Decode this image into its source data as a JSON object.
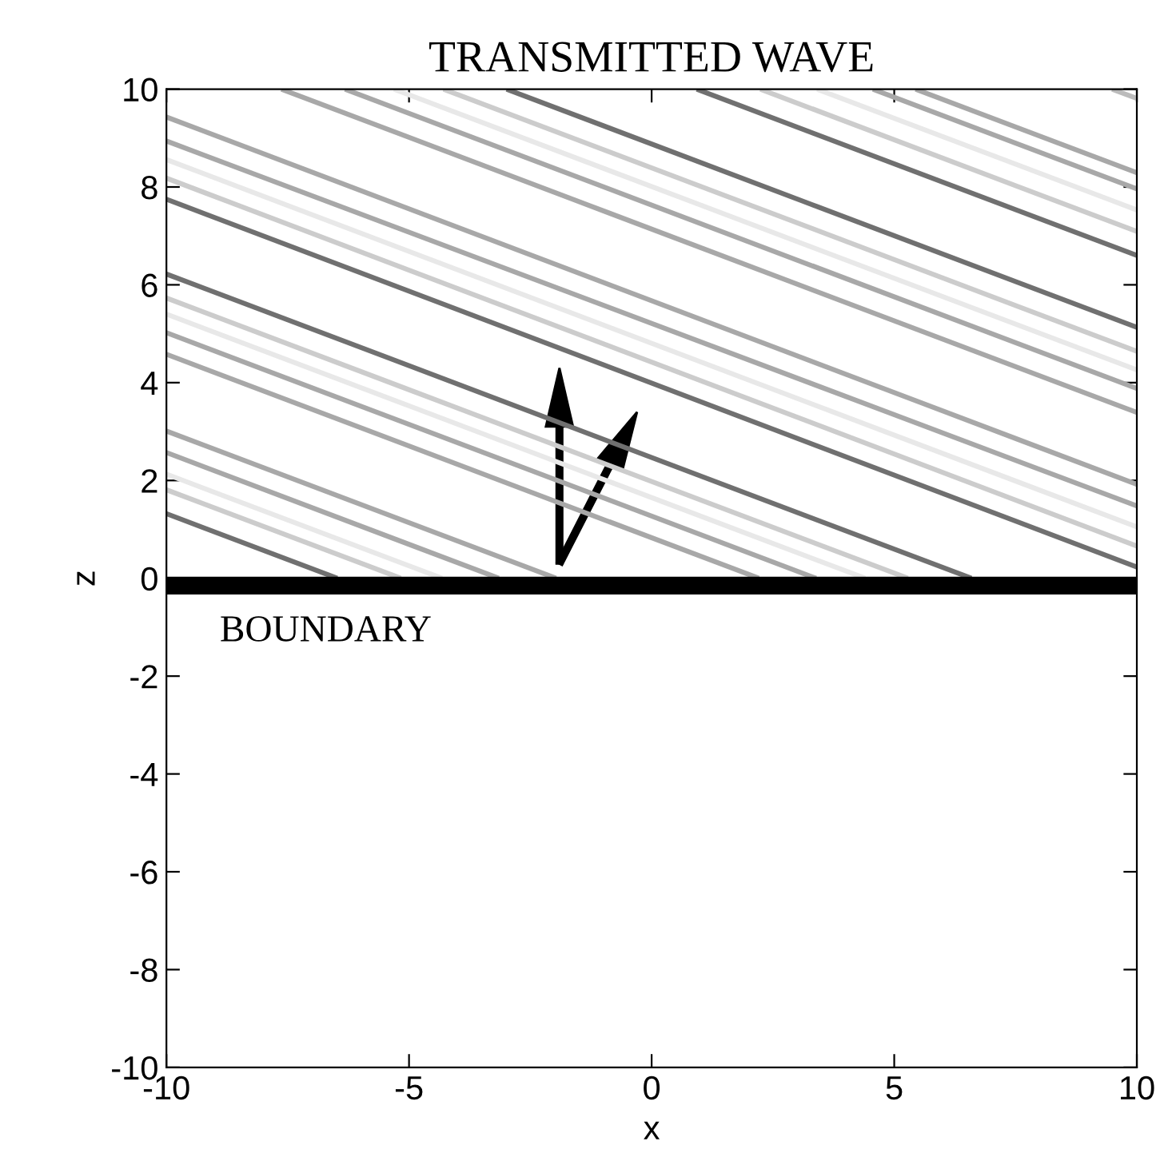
{
  "chart_data": {
    "type": "line",
    "title": "TRANSMITTED WAVE",
    "xlabel": "x",
    "ylabel": "z",
    "xlim": [
      -10,
      10
    ],
    "ylim": [
      -10,
      10
    ],
    "xticks": [
      -10,
      -5,
      0,
      5,
      10
    ],
    "yticks": [
      -10,
      -8,
      -6,
      -4,
      -2,
      0,
      2,
      4,
      6,
      8,
      10
    ],
    "grid": false,
    "legend": false,
    "marker": "none",
    "line_style": "solid",
    "ref_lines": [
      {
        "axis": "y",
        "value": -0.15,
        "label": "BOUNDARY",
        "color": "#000000"
      }
    ],
    "series": [
      {
        "color": "#bbbbbb",
        "x": [
          9.49,
          10
        ],
        "values": [
          10,
          9.81
        ]
      },
      {
        "color": "#a8a8a8",
        "x": [
          5.44,
          10
        ],
        "values": [
          10,
          8.29
        ]
      },
      {
        "color": "#a8a8a8",
        "x": [
          4.56,
          10
        ],
        "values": [
          10,
          7.96
        ]
      },
      {
        "color": "#e8e8e8",
        "x": [
          3.41,
          10
        ],
        "values": [
          10,
          7.53
        ]
      },
      {
        "color": "#cccccc",
        "x": [
          2.24,
          10
        ],
        "values": [
          10,
          7.09
        ]
      },
      {
        "color": "#707070",
        "x": [
          0.93,
          10
        ],
        "values": [
          10,
          6.6
        ]
      },
      {
        "color": "#707070",
        "x": [
          -2.99,
          10
        ],
        "values": [
          10,
          5.13
        ]
      },
      {
        "color": "#cccccc",
        "x": [
          -4.29,
          10
        ],
        "values": [
          10,
          4.64
        ]
      },
      {
        "color": "#e8e8e8",
        "x": [
          -5.31,
          10
        ],
        "values": [
          10,
          4.26
        ]
      },
      {
        "color": "#a8a8a8",
        "x": [
          -6.32,
          10
        ],
        "values": [
          10,
          3.88
        ]
      },
      {
        "color": "#a8a8a8",
        "x": [
          -7.63,
          10
        ],
        "values": [
          10,
          3.39
        ]
      },
      {
        "color": "#a8a8a8",
        "x": [
          -10,
          10
        ],
        "values": [
          9.43,
          1.92
        ]
      },
      {
        "color": "#a8a8a8",
        "x": [
          -10,
          10
        ],
        "values": [
          8.94,
          1.48
        ]
      },
      {
        "color": "#e8e8e8",
        "x": [
          -10,
          10
        ],
        "values": [
          8.56,
          1.05
        ]
      },
      {
        "color": "#cccccc",
        "x": [
          -10,
          10
        ],
        "values": [
          8.18,
          0.66
        ]
      },
      {
        "color": "#707070",
        "x": [
          -10,
          10
        ],
        "values": [
          7.75,
          0.23
        ]
      },
      {
        "color": "#707070",
        "x": [
          -10,
          6.59
        ],
        "values": [
          6.22,
          0
        ]
      },
      {
        "color": "#cccccc",
        "x": [
          -10,
          5.28
        ],
        "values": [
          5.73,
          0
        ]
      },
      {
        "color": "#e8e8e8",
        "x": [
          -10,
          4.4
        ],
        "values": [
          5.4,
          0
        ]
      },
      {
        "color": "#a8a8a8",
        "x": [
          -10,
          3.39
        ],
        "values": [
          5.02,
          0
        ]
      },
      {
        "color": "#a8a8a8",
        "x": [
          -10,
          2.21
        ],
        "values": [
          4.58,
          0
        ]
      },
      {
        "color": "#a8a8a8",
        "x": [
          -10,
          -1.97
        ],
        "values": [
          3.01,
          0
        ]
      },
      {
        "color": "#a8a8a8",
        "x": [
          -10,
          -3.15
        ],
        "values": [
          2.57,
          0
        ]
      },
      {
        "color": "#e8e8e8",
        "x": [
          -10,
          -4.32
        ],
        "values": [
          2.13,
          0
        ]
      },
      {
        "color": "#cccccc",
        "x": [
          -10,
          -5.17
        ],
        "values": [
          1.81,
          0
        ]
      },
      {
        "color": "#707070",
        "x": [
          -10,
          -6.48
        ],
        "values": [
          1.32,
          0
        ]
      }
    ]
  }
}
